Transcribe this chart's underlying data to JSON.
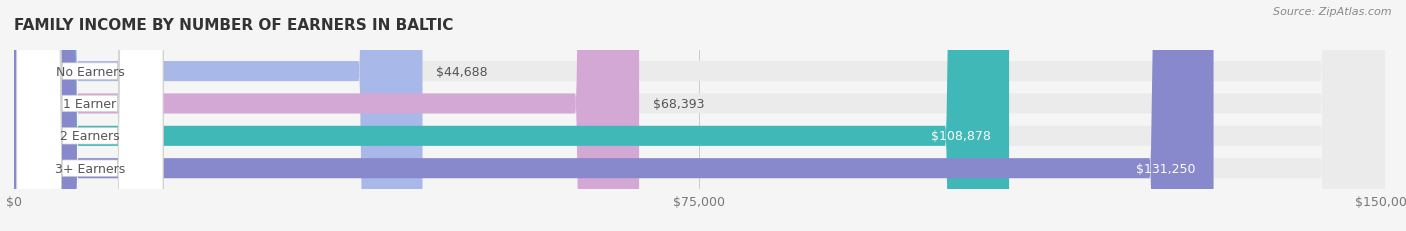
{
  "title": "FAMILY INCOME BY NUMBER OF EARNERS IN BALTIC",
  "source": "Source: ZipAtlas.com",
  "categories": [
    "No Earners",
    "1 Earner",
    "2 Earners",
    "3+ Earners"
  ],
  "values": [
    44688,
    68393,
    108878,
    131250
  ],
  "bar_colors": [
    "#a8b8e8",
    "#d4a8d4",
    "#40b8b8",
    "#8888cc"
  ],
  "label_colors": [
    "#555555",
    "#555555",
    "#ffffff",
    "#ffffff"
  ],
  "value_labels": [
    "$44,688",
    "$68,393",
    "$108,878",
    "$131,250"
  ],
  "x_max": 150000,
  "x_ticks": [
    0,
    75000,
    150000
  ],
  "x_tick_labels": [
    "$0",
    "$75,000",
    "$150,000"
  ],
  "bg_color": "#f5f5f5",
  "bar_bg_color": "#ebebeb",
  "title_fontsize": 11,
  "source_fontsize": 8,
  "label_fontsize": 9,
  "value_fontsize": 9,
  "tick_fontsize": 9
}
